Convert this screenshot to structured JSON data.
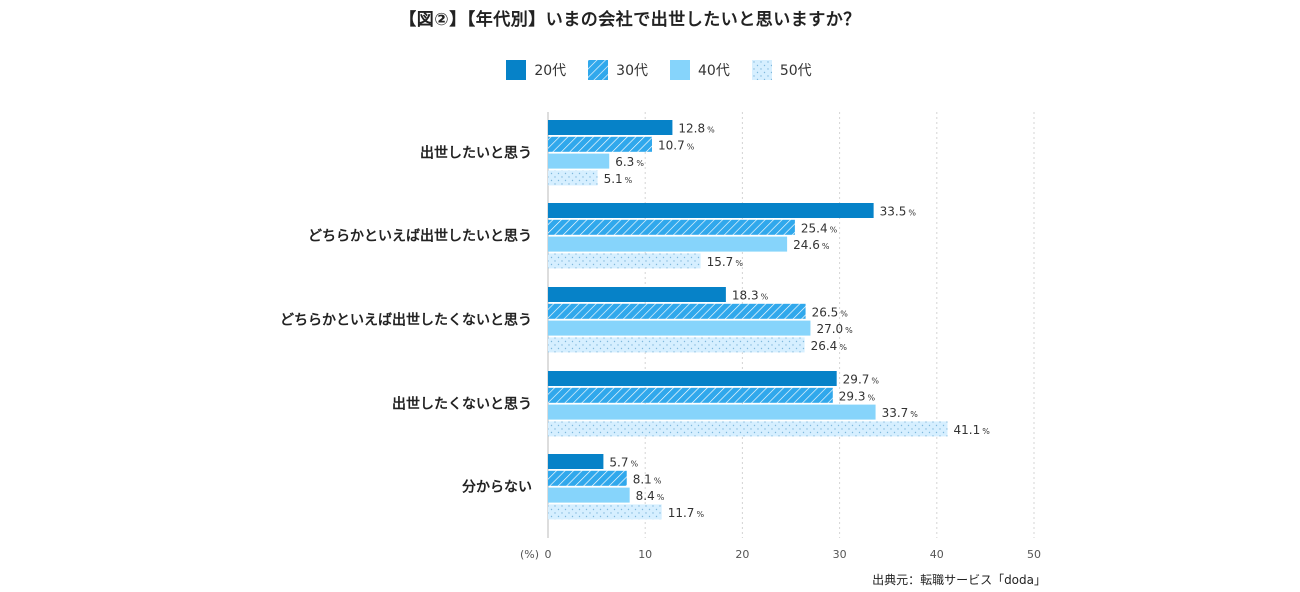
{
  "chart_data": {
    "type": "bar",
    "orientation": "horizontal",
    "title": "【図②】【年代別】いまの会社で出世したいと思いますか？",
    "categories": [
      "出世したいと思う",
      "どちらかといえば出世したいと思う",
      "どちらかといえば出世したくないと思う",
      "出世したくないと思う",
      "分からない"
    ],
    "series": [
      {
        "name": "20代",
        "color": "#0682c8",
        "pattern": "solid",
        "values": [
          12.8,
          33.5,
          18.3,
          29.7,
          5.7
        ]
      },
      {
        "name": "30代",
        "color": "#30a8ec",
        "pattern": "hatch",
        "values": [
          10.7,
          25.4,
          26.5,
          29.3,
          8.1
        ]
      },
      {
        "name": "40代",
        "color": "#86d4fb",
        "pattern": "solid",
        "values": [
          6.3,
          24.6,
          27.0,
          33.7,
          8.4
        ]
      },
      {
        "name": "50代",
        "color": "#d6efff",
        "pattern": "dots",
        "values": [
          5.1,
          15.7,
          26.4,
          41.1,
          11.7
        ]
      }
    ],
    "value_suffix": "%",
    "xlabel": "(%)",
    "xlim": [
      0,
      50
    ],
    "xticks": [
      0,
      10,
      20,
      30,
      40,
      50
    ],
    "grid": true,
    "legend_position": "top-center"
  },
  "source": "出典元：転職サービス「doda」"
}
